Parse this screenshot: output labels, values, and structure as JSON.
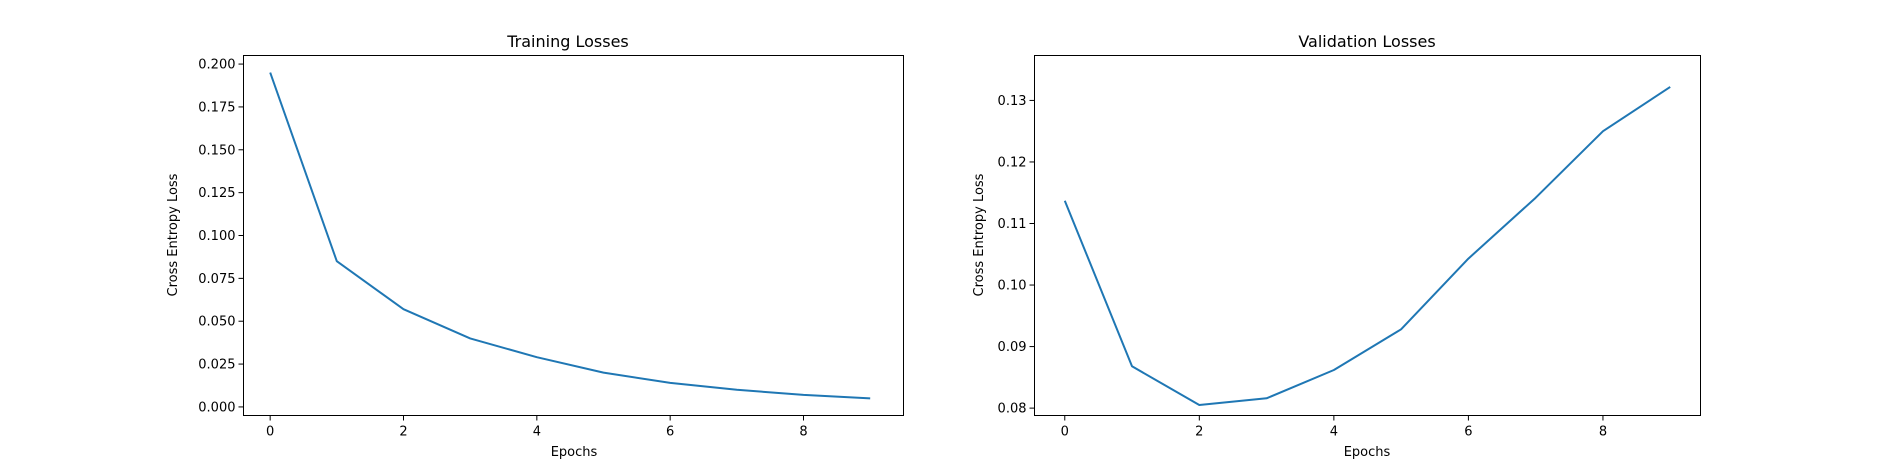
{
  "colors": {
    "series": "#1f77b4"
  },
  "chart_data": [
    {
      "type": "line",
      "title": "Training Losses",
      "xlabel": "Epochs",
      "ylabel": "Cross Entropy Loss",
      "xlim": [
        -0.4,
        9.5
      ],
      "ylim": [
        -0.005,
        0.205
      ],
      "xticks": [
        0,
        2,
        4,
        6,
        8
      ],
      "yticks": [
        0.0,
        0.025,
        0.05,
        0.075,
        0.1,
        0.125,
        0.15,
        0.175,
        0.2
      ],
      "xtick_labels": [
        "0",
        "2",
        "4",
        "6",
        "8"
      ],
      "ytick_labels": [
        "0.000",
        "0.025",
        "0.050",
        "0.075",
        "0.100",
        "0.125",
        "0.150",
        "0.175",
        "0.200"
      ],
      "grid": false,
      "series": [
        {
          "x": [
            0,
            1,
            2,
            3,
            4,
            5,
            6,
            7,
            8,
            9
          ],
          "values": [
            0.195,
            0.085,
            0.057,
            0.04,
            0.029,
            0.02,
            0.014,
            0.01,
            0.007,
            0.005
          ]
        }
      ]
    },
    {
      "type": "line",
      "title": "Validation Losses",
      "xlabel": "Epochs",
      "ylabel": "Cross Entropy Loss",
      "xlim": [
        -0.45,
        9.45
      ],
      "ylim": [
        0.0788,
        0.1373
      ],
      "xticks": [
        0,
        2,
        4,
        6,
        8
      ],
      "yticks": [
        0.08,
        0.09,
        0.1,
        0.11,
        0.12,
        0.13
      ],
      "xtick_labels": [
        "0",
        "2",
        "4",
        "6",
        "8"
      ],
      "ytick_labels": [
        "0.08",
        "0.09",
        "0.10",
        "0.11",
        "0.12",
        "0.13"
      ],
      "grid": false,
      "series": [
        {
          "x": [
            0,
            1,
            2,
            3,
            4,
            5,
            6,
            7,
            8,
            9
          ],
          "values": [
            0.1137,
            0.0868,
            0.0805,
            0.0816,
            0.0862,
            0.0928,
            0.1043,
            0.1142,
            0.125,
            0.1322
          ]
        }
      ]
    }
  ]
}
